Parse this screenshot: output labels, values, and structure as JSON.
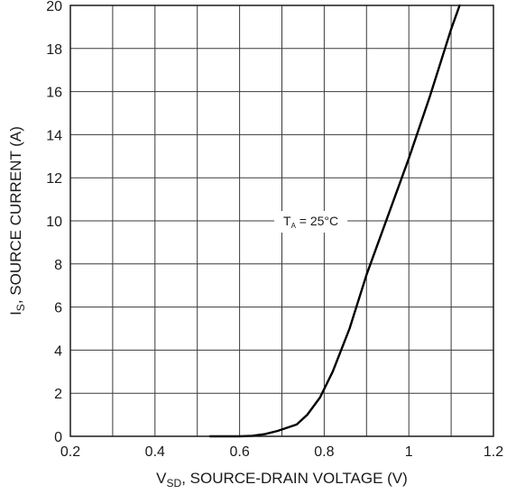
{
  "chart_data": {
    "type": "line",
    "xlabel_main": "V",
    "xlabel_sub": "SD",
    "xlabel_rest": ", SOURCE-DRAIN VOLTAGE (V)",
    "ylabel_main": "I",
    "ylabel_sub": "S",
    "ylabel_rest": ", SOURCE CURRENT (A)",
    "xlim": [
      0.2,
      1.2
    ],
    "ylim": [
      0,
      20
    ],
    "x_ticks": [
      0.2,
      0.4,
      0.6,
      0.8,
      1,
      1.2
    ],
    "x_tick_labels": [
      "0.2",
      "0.4",
      "0.6",
      "0.8",
      "1",
      "1.2"
    ],
    "x_grid": [
      0.2,
      0.3,
      0.4,
      0.5,
      0.6,
      0.7,
      0.8,
      0.9,
      1.0,
      1.1,
      1.2
    ],
    "y_ticks": [
      0,
      2,
      4,
      6,
      8,
      10,
      12,
      14,
      16,
      18,
      20
    ],
    "y_tick_labels": [
      "0",
      "2",
      "4",
      "6",
      "8",
      "10",
      "12",
      "14",
      "16",
      "18",
      "20"
    ],
    "grid": true,
    "annotation": {
      "main": "T",
      "sub": "A",
      "rest": " = 25°C",
      "x": 0.84,
      "y": 10
    },
    "series": [
      {
        "x": [
          0.53,
          0.6,
          0.63,
          0.66,
          0.69,
          0.72,
          0.735,
          0.76,
          0.79,
          0.82,
          0.86,
          0.9,
          0.95,
          1.0,
          1.05,
          1.1,
          1.12
        ],
        "y": [
          0.0,
          0.0,
          0.02,
          0.1,
          0.25,
          0.45,
          0.55,
          1.0,
          1.8,
          3.0,
          5.0,
          7.5,
          10.2,
          12.9,
          15.8,
          18.9,
          20.0
        ]
      }
    ]
  }
}
